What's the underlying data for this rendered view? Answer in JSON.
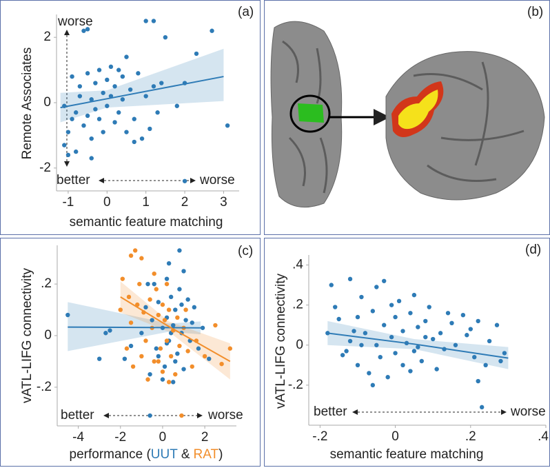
{
  "chart_data": [
    {
      "type": "scatter",
      "panel": "(a)",
      "ylabel": "Remote Associates",
      "xlabel": "semantic feature matching",
      "annotations": [
        "worse",
        "better",
        "worse"
      ],
      "xlim": [
        -1.3,
        3.4
      ],
      "ylim": [
        -2.7,
        2.7
      ],
      "xticks": [
        -1,
        0,
        1,
        2,
        3
      ],
      "yticks": [
        -2,
        0,
        2
      ],
      "series": [
        {
          "color": "#2e7bb6",
          "x": [
            -1.1,
            -1.0,
            -1.1,
            -0.9,
            -0.8,
            -0.9,
            -0.7,
            -0.6,
            -0.7,
            -0.5,
            -0.5,
            -0.4,
            -0.4,
            -0.3,
            -0.3,
            -0.2,
            -0.2,
            -0.1,
            -0.1,
            0.0,
            0.0,
            0.1,
            0.1,
            0.2,
            0.2,
            0.3,
            0.3,
            0.4,
            0.4,
            0.5,
            0.5,
            0.6,
            0.7,
            0.8,
            0.9,
            1.0,
            1.1,
            1.2,
            1.3,
            1.8,
            2.0,
            2.3,
            3.1,
            2.0,
            -0.6,
            -0.5,
            1.0,
            1.2,
            1.5,
            2.7,
            -1.0,
            -0.8,
            -0.4,
            0.7,
            1.4
          ],
          "values": [
            -0.1,
            -0.9,
            -1.3,
            -0.5,
            -0.3,
            0.8,
            0.2,
            -0.7,
            0.5,
            -0.4,
            0.9,
            0.1,
            -1.1,
            0.6,
            -0.2,
            1.0,
            -0.5,
            0.3,
            -0.9,
            0.7,
            -0.1,
            1.1,
            0.2,
            -0.6,
            0.5,
            1.0,
            -0.3,
            0.1,
            0.8,
            -0.9,
            1.4,
            0.4,
            -0.5,
            0.9,
            -1.1,
            0.2,
            -0.8,
            0.5,
            -0.3,
            -0.1,
            0.6,
            1.5,
            -0.7,
            -2.4,
            2.2,
            2.25,
            2.5,
            2.5,
            2.0,
            2.2,
            -1.6,
            -1.5,
            -1.7,
            -1.2,
            0.6
          ],
          "fit": {
            "x": [
              -1.2,
              0,
              3
            ],
            "values": [
              -0.15,
              0.12,
              0.8
            ],
            "lower": [
              -0.6,
              -0.15,
              0.05
            ],
            "upper": [
              0.3,
              0.38,
              1.65
            ]
          }
        }
      ]
    },
    {
      "type": "image",
      "panel": "(b)"
    },
    {
      "type": "scatter",
      "panel": "(c)",
      "ylabel": "vATL-LIFG connectivity",
      "xlabel": [
        "performance (",
        "UUT",
        "&",
        "RAT",
        ")"
      ],
      "annotations": [
        "better",
        "worse"
      ],
      "xlim": [
        -5,
        3.5
      ],
      "ylim": [
        -0.35,
        0.35
      ],
      "xticks": [
        -4,
        -2,
        0,
        2
      ],
      "yticks": [
        {
          "value": -0.2,
          "label": "-.2"
        },
        0,
        {
          "value": 0.2,
          "label": ".2"
        }
      ],
      "series": [
        {
          "color": "#2e7bb6",
          "x": [
            -4.5,
            -3.0,
            -2.7,
            -2.5,
            -1.5,
            -1.0,
            -0.8,
            -0.6,
            -0.5,
            -0.4,
            -0.3,
            -0.2,
            0.0,
            0.1,
            0.2,
            0.2,
            0.3,
            0.4,
            0.5,
            0.5,
            0.6,
            0.7,
            0.8,
            0.8,
            0.9,
            1.0,
            1.0,
            1.1,
            1.3,
            1.5,
            1.7,
            1.9,
            2.2,
            0.3,
            -0.2,
            0.6,
            1.2,
            -0.7,
            0.0,
            0.4,
            -0.6,
            -1.8,
            0.9,
            0.2,
            1.4
          ],
          "values": [
            0.08,
            -0.09,
            0.01,
            0.02,
            -0.04,
            0.01,
            0.11,
            -0.15,
            0.06,
            0.2,
            -0.05,
            0.13,
            0.03,
            -0.12,
            0.22,
            0.07,
            -0.02,
            0.15,
            -0.18,
            0.04,
            0.1,
            -0.07,
            0.18,
            0.33,
            0.01,
            -0.13,
            0.25,
            0.06,
            -0.02,
            0.11,
            -0.05,
            0.03,
            -0.09,
            0.28,
            -0.08,
            -0.1,
            0.14,
            0.2,
            -0.17,
            0.01,
            -0.31,
            -0.09,
            0.12,
            -0.03,
            0.05
          ],
          "fit": {
            "x": [
              -4.5,
              0.3,
              1.8
            ],
            "values": [
              0.033,
              0.031,
              0.03
            ],
            "lower": [
              -0.06,
              0.015,
              0.005
            ],
            "upper": [
              0.13,
              0.047,
              0.055
            ]
          }
        },
        {
          "color": "#f28e2b",
          "x": [
            -1.5,
            -1.3,
            -1.0,
            -1.9,
            -1.6,
            -1.2,
            -1.5,
            -1.1,
            -0.9,
            -0.8,
            -0.6,
            -0.5,
            -0.4,
            -0.3,
            -0.2,
            -0.1,
            0.0,
            0.0,
            0.1,
            0.2,
            0.3,
            0.4,
            0.5,
            0.6,
            0.7,
            0.8,
            0.9,
            1.0,
            1.2,
            1.4,
            1.6,
            2.0,
            2.5,
            2.8,
            3.2,
            -1.7,
            -1.4,
            -0.7,
            -0.4,
            0.3,
            -2.0,
            -1.0,
            0.2,
            1.1,
            -0.2
          ],
          "values": [
            0.31,
            0.33,
            0.3,
            0.22,
            0.15,
            0.12,
            0.05,
            0.2,
            0.09,
            -0.02,
            0.14,
            0.03,
            -0.1,
            0.18,
            0.08,
            -0.05,
            0.12,
            -0.14,
            0.06,
            -0.02,
            0.1,
            -0.08,
            0.02,
            -0.15,
            0.07,
            -0.04,
            -0.31,
            0.03,
            -0.06,
            -0.12,
            -0.02,
            -0.08,
            0.04,
            -0.11,
            -0.05,
            -0.05,
            -0.12,
            -0.17,
            0.24,
            -0.18,
            0.1,
            -0.08,
            0.2,
            0.1,
            -0.1
          ],
          "fit": {
            "x": [
              -2,
              0.3,
              3.2
            ],
            "values": [
              0.15,
              0.035,
              -0.1
            ],
            "lower": [
              0.09,
              0.015,
              -0.17
            ],
            "upper": [
              0.21,
              0.055,
              -0.03
            ]
          }
        }
      ]
    },
    {
      "type": "scatter",
      "panel": "(d)",
      "ylabel": "vATL-LIFG connectivity",
      "xlabel": "semantic feature matching",
      "annotations": [
        "better",
        "worse"
      ],
      "xlim": [
        -0.23,
        0.4
      ],
      "ylim": [
        -0.4,
        0.45
      ],
      "xticks": [
        {
          "value": -0.2,
          "label": "-.2"
        },
        0,
        {
          "value": 0.2,
          "label": ".2"
        },
        {
          "value": 0.4,
          "label": ".4"
        }
      ],
      "yticks": [
        {
          "value": -0.2,
          "label": "-.2"
        },
        0,
        {
          "value": 0.2,
          "label": ".2"
        },
        {
          "value": 0.4,
          "label": ".4"
        }
      ],
      "series": [
        {
          "color": "#2e7bb6",
          "x": [
            -0.17,
            -0.12,
            -0.18,
            -0.15,
            -0.14,
            -0.12,
            -0.1,
            -0.1,
            -0.09,
            -0.08,
            -0.07,
            -0.06,
            -0.05,
            -0.05,
            -0.04,
            -0.03,
            -0.03,
            -0.02,
            -0.01,
            0.0,
            0.0,
            0.01,
            0.02,
            0.02,
            0.03,
            0.04,
            0.05,
            0.05,
            0.06,
            0.07,
            0.08,
            0.09,
            0.1,
            0.11,
            0.12,
            0.13,
            0.15,
            0.16,
            0.18,
            0.2,
            0.21,
            0.22,
            0.24,
            0.25,
            0.27,
            0.28,
            0.29,
            0.23,
            0.22,
            -0.13,
            -0.11,
            -0.06,
            0.04,
            0.08,
            0.14,
            -0.16,
            -0.01,
            0.06,
            -0.09,
            0.19
          ],
          "values": [
            0.3,
            0.33,
            0.06,
            0.13,
            -0.05,
            0.02,
            0.14,
            -0.1,
            0.24,
            0.06,
            -0.14,
            0.17,
            0.0,
            0.29,
            -0.06,
            0.1,
            0.32,
            -0.16,
            0.04,
            0.14,
            -0.04,
            0.22,
            0.07,
            -0.1,
            0.01,
            0.16,
            -0.03,
            0.25,
            0.09,
            -0.08,
            0.12,
            0.19,
            0.03,
            -0.12,
            0.06,
            -0.02,
            0.11,
            0.0,
            0.15,
            0.08,
            -0.06,
            0.12,
            -0.1,
            0.02,
            0.1,
            -0.08,
            -0.04,
            -0.31,
            -0.18,
            -0.03,
            0.07,
            -0.2,
            -0.13,
            0.04,
            0.16,
            0.19,
            0.2,
            -0.01,
            0.0,
            0.05
          ],
          "fit": {
            "x": [
              -0.18,
              0.05,
              0.3
            ],
            "values": [
              0.06,
              0.005,
              -0.065
            ],
            "lower": [
              0.0,
              -0.02,
              -0.12
            ],
            "upper": [
              0.12,
              0.03,
              -0.01
            ]
          }
        }
      ]
    }
  ]
}
